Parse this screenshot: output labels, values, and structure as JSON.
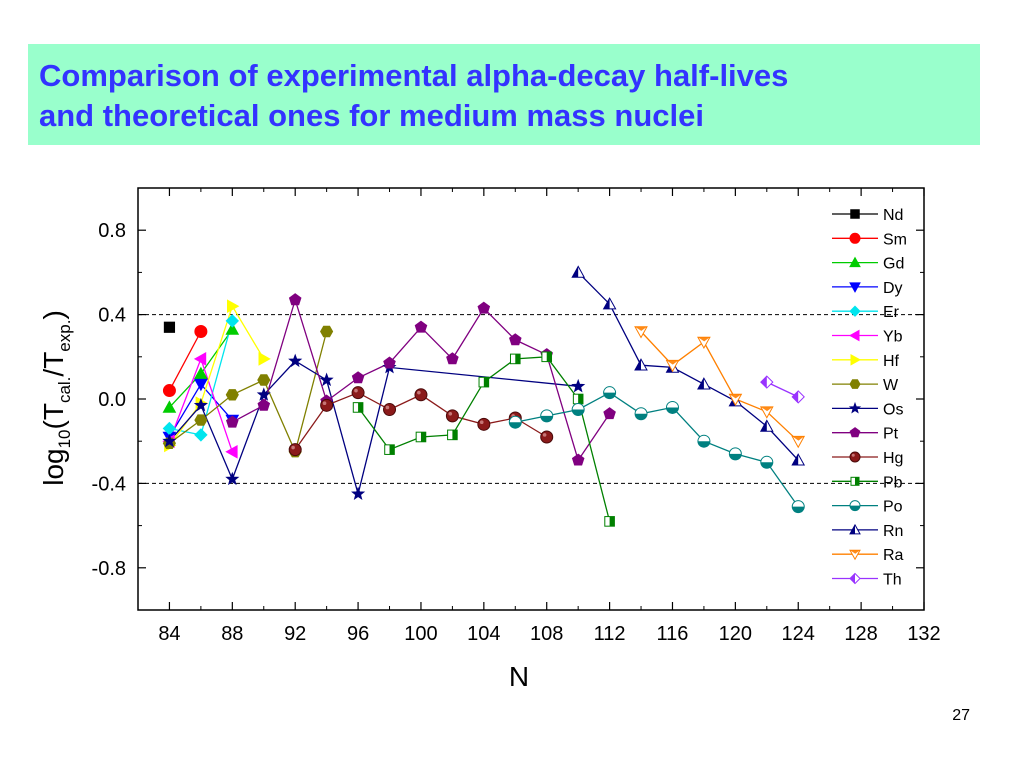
{
  "slide": {
    "title_line1": "Comparison of experimental alpha-decay half-lives",
    "title_line2": "and theoretical ones for medium mass nuclei",
    "page_number": "27",
    "title_color": "#3333ff",
    "title_background": "#99ffcc"
  },
  "chart_data": {
    "type": "scatter",
    "xlabel": "N",
    "ylabel": "log10(Tcal./Texp.)",
    "xlim": [
      82,
      132
    ],
    "ylim": [
      -1.0,
      1.0
    ],
    "xticks": [
      84,
      88,
      92,
      96,
      100,
      104,
      108,
      112,
      116,
      120,
      124,
      128,
      132
    ],
    "yticks": [
      0.8,
      0.4,
      0.0,
      -0.4,
      -0.8
    ],
    "ytick_labels": [
      "0.8",
      "0.4",
      "0.0",
      "-0.4",
      "-0.8"
    ],
    "reference_lines": [
      0.4,
      -0.4
    ],
    "grid": false,
    "legend_position": "top-right",
    "series": [
      {
        "name": "Nd",
        "color": "#000000",
        "marker": "square",
        "x": [
          84
        ],
        "y": [
          0.34
        ]
      },
      {
        "name": "Sm",
        "color": "#ff0000",
        "marker": "circle",
        "x": [
          84,
          86
        ],
        "y": [
          0.04,
          0.32
        ]
      },
      {
        "name": "Gd",
        "color": "#00cc00",
        "marker": "triangle-up",
        "x": [
          84,
          86,
          88
        ],
        "y": [
          -0.04,
          0.12,
          0.33
        ]
      },
      {
        "name": "Dy",
        "color": "#0000ff",
        "marker": "triangle-down",
        "x": [
          84,
          86,
          88
        ],
        "y": [
          -0.18,
          0.07,
          -0.1
        ]
      },
      {
        "name": "Er",
        "color": "#00e5ee",
        "marker": "diamond",
        "x": [
          84,
          86,
          88
        ],
        "y": [
          -0.14,
          -0.17,
          0.37
        ]
      },
      {
        "name": "Yb",
        "color": "#ff00ff",
        "marker": "triangle-left",
        "x": [
          84,
          86,
          88
        ],
        "y": [
          -0.2,
          0.19,
          -0.25
        ]
      },
      {
        "name": "Hf",
        "color": "#ffff00",
        "marker": "triangle-right",
        "x": [
          84,
          86,
          88,
          90
        ],
        "y": [
          -0.22,
          -0.02,
          0.44,
          0.19
        ]
      },
      {
        "name": "W",
        "color": "#808000",
        "marker": "hexagon",
        "x": [
          84,
          86,
          88,
          90,
          92,
          94
        ],
        "y": [
          -0.21,
          -0.1,
          0.02,
          0.09,
          -0.25,
          0.32
        ]
      },
      {
        "name": "Os",
        "color": "#000080",
        "marker": "star",
        "x": [
          84,
          86,
          88,
          90,
          92,
          94,
          96,
          98,
          110
        ],
        "y": [
          -0.2,
          -0.03,
          -0.38,
          0.02,
          0.18,
          0.09,
          -0.45,
          0.15,
          0.06
        ]
      },
      {
        "name": "Pt",
        "color": "#800080",
        "marker": "pentagon",
        "x": [
          88,
          90,
          92,
          94,
          96,
          98,
          100,
          102,
          104,
          106,
          108,
          110,
          112
        ],
        "y": [
          -0.11,
          -0.03,
          0.47,
          -0.01,
          0.1,
          0.17,
          0.34,
          0.19,
          0.43,
          0.28,
          0.21,
          -0.29,
          -0.07
        ]
      },
      {
        "name": "Hg",
        "color": "#8b1a1a",
        "marker": "sphere",
        "x": [
          92,
          94,
          96,
          98,
          100,
          102,
          104,
          106,
          108
        ],
        "y": [
          -0.24,
          -0.03,
          0.03,
          -0.05,
          0.02,
          -0.08,
          -0.12,
          -0.09,
          -0.18
        ]
      },
      {
        "name": "Pb",
        "color": "#008000",
        "marker": "half-square",
        "x": [
          96,
          98,
          100,
          102,
          104,
          106,
          108,
          110,
          112
        ],
        "y": [
          -0.04,
          -0.24,
          -0.18,
          -0.17,
          0.08,
          0.19,
          0.2,
          0.0,
          -0.58
        ]
      },
      {
        "name": "Po",
        "color": "#008080",
        "marker": "half-circle",
        "x": [
          106,
          108,
          110,
          112,
          114,
          116,
          118,
          120,
          122,
          124
        ],
        "y": [
          -0.11,
          -0.08,
          -0.05,
          0.03,
          -0.07,
          -0.04,
          -0.2,
          -0.26,
          -0.3,
          -0.51
        ]
      },
      {
        "name": "Rn",
        "color": "#000080",
        "marker": "half-triangle-up",
        "x": [
          110,
          112,
          114,
          116,
          118,
          120,
          122,
          124
        ],
        "y": [
          0.6,
          0.45,
          0.16,
          0.15,
          0.07,
          -0.01,
          -0.13,
          -0.29
        ]
      },
      {
        "name": "Ra",
        "color": "#ff8000",
        "marker": "half-triangle-down",
        "x": [
          114,
          116,
          118,
          120,
          122,
          124
        ],
        "y": [
          0.32,
          0.16,
          0.27,
          0.0,
          -0.06,
          -0.2
        ]
      },
      {
        "name": "Th",
        "color": "#9933ff",
        "marker": "half-diamond",
        "x": [
          122,
          124
        ],
        "y": [
          0.08,
          0.01
        ]
      }
    ]
  }
}
